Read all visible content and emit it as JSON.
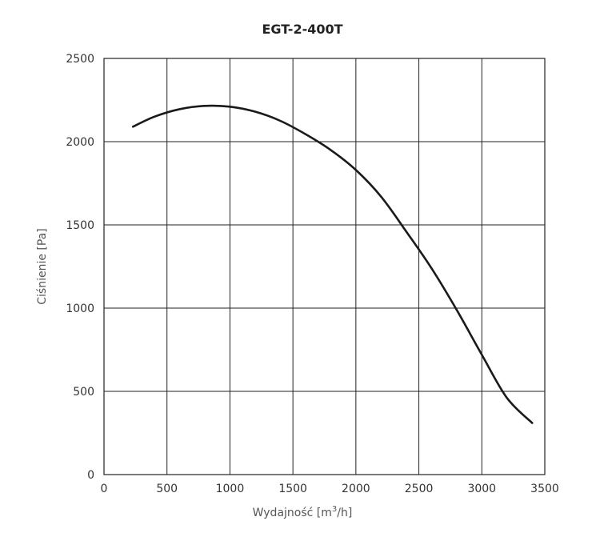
{
  "chart_data": {
    "type": "line",
    "title": "EGT-2-400T",
    "xlabel": "Wydajność [m",
    "xlabel_sup": "3",
    "xlabel_tail": "/h]",
    "ylabel": "Ciśnienie [Pa]",
    "xlim": [
      0,
      3500
    ],
    "ylim": [
      0,
      2500
    ],
    "x_ticks": [
      0,
      500,
      1000,
      1500,
      2000,
      2500,
      3000,
      3500
    ],
    "y_ticks": [
      0,
      500,
      1000,
      1500,
      2000,
      2500
    ],
    "x_tick_labels": [
      "0",
      "500",
      "1000",
      "1500",
      "2000",
      "2500",
      "3000",
      "3500"
    ],
    "y_tick_labels": [
      "0",
      "500",
      "1000",
      "1500",
      "2000",
      "2500"
    ],
    "grid": true,
    "series": [
      {
        "color": "#1a1a1a",
        "points": [
          [
            230,
            2090
          ],
          [
            400,
            2150
          ],
          [
            600,
            2195
          ],
          [
            800,
            2215
          ],
          [
            1000,
            2210
          ],
          [
            1200,
            2180
          ],
          [
            1400,
            2125
          ],
          [
            1600,
            2045
          ],
          [
            1800,
            1950
          ],
          [
            2000,
            1830
          ],
          [
            2200,
            1670
          ],
          [
            2400,
            1460
          ],
          [
            2600,
            1240
          ],
          [
            2800,
            990
          ],
          [
            3000,
            720
          ],
          [
            3200,
            460
          ],
          [
            3400,
            310
          ]
        ]
      }
    ]
  }
}
